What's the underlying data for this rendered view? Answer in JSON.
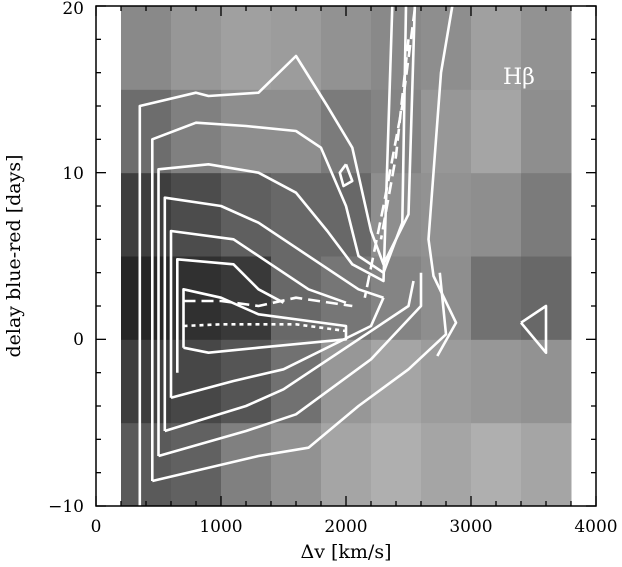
{
  "chart_data": {
    "type": "heatmap",
    "title": "",
    "panel_label": "Hβ",
    "xlabel": "Δv [km/s]",
    "ylabel": "delay blue-red [days]",
    "xlim": [
      0,
      4000
    ],
    "ylim": [
      -10,
      20
    ],
    "x_ticks": [
      0,
      1000,
      2000,
      3000,
      4000
    ],
    "y_ticks": [
      -10,
      0,
      10,
      20
    ],
    "x_tick_labels": [
      "0",
      "1000",
      "2000",
      "3000",
      "4000"
    ],
    "y_tick_labels": [
      "−10",
      "0",
      "10",
      "20"
    ],
    "grid": false,
    "colormap": "grayscale (dark = high, light = low)",
    "contour_color": "#ffffff",
    "x_bins": [
      200,
      600,
      1000,
      1400,
      1800,
      2200,
      2600,
      3000,
      3400,
      3800
    ],
    "y_bins": [
      -10,
      -5,
      0,
      5,
      10,
      15,
      20
    ],
    "values": [
      [
        0.66,
        0.63,
        0.5,
        0.42,
        0.34,
        0.3,
        0.34,
        0.3,
        0.34
      ],
      [
        0.78,
        0.74,
        0.68,
        0.56,
        0.4,
        0.34,
        0.38,
        0.4,
        0.42
      ],
      [
        0.88,
        0.84,
        0.8,
        0.6,
        0.54,
        0.48,
        0.44,
        0.56,
        0.6
      ],
      [
        0.78,
        0.72,
        0.64,
        0.6,
        0.6,
        0.44,
        0.42,
        0.44,
        0.52
      ],
      [
        0.58,
        0.5,
        0.44,
        0.44,
        0.52,
        0.48,
        0.4,
        0.34,
        0.44
      ],
      [
        0.46,
        0.4,
        0.36,
        0.38,
        0.42,
        0.46,
        0.44,
        0.36,
        0.42
      ]
    ],
    "contours": [
      [
        [
          350,
          -10
        ],
        [
          350,
          14.0
        ],
        [
          800,
          14.8
        ],
        [
          900,
          14.6
        ],
        [
          1300,
          14.8
        ],
        [
          1600,
          17.0
        ],
        [
          1850,
          14.0
        ],
        [
          2050,
          11.5
        ],
        [
          2200,
          6.5
        ],
        [
          2300,
          4.5
        ],
        [
          2500,
          7.5
        ],
        [
          2550,
          20
        ]
      ],
      [
        [
          450,
          -8.5
        ],
        [
          450,
          12.0
        ],
        [
          800,
          13.0
        ],
        [
          1200,
          12.8
        ],
        [
          1600,
          12.5
        ],
        [
          1800,
          11.5
        ],
        [
          2000,
          8.0
        ],
        [
          2100,
          5.0
        ],
        [
          2300,
          4.0
        ],
        [
          2450,
          7.0
        ],
        [
          2480,
          20
        ]
      ],
      [
        [
          500,
          -7.0
        ],
        [
          500,
          10.2
        ],
        [
          900,
          10.5
        ],
        [
          1300,
          10.0
        ],
        [
          1600,
          8.8
        ],
        [
          1850,
          6.5
        ],
        [
          2050,
          4.5
        ],
        [
          2300,
          3.5
        ],
        [
          2370,
          20
        ]
      ],
      [
        [
          550,
          -5.5
        ],
        [
          550,
          8.5
        ],
        [
          1000,
          8.0
        ],
        [
          1300,
          7.0
        ],
        [
          1600,
          5.5
        ],
        [
          1900,
          4.0
        ],
        [
          2100,
          3.0
        ],
        [
          2300,
          2.5
        ]
      ],
      [
        [
          600,
          -3.5
        ],
        [
          600,
          6.5
        ],
        [
          1100,
          6.0
        ],
        [
          1400,
          4.5
        ],
        [
          1700,
          3.0
        ],
        [
          2000,
          2.2
        ]
      ],
      [
        [
          650,
          -2.0
        ],
        [
          650,
          4.8
        ],
        [
          1100,
          4.5
        ],
        [
          1300,
          3.0
        ],
        [
          1500,
          2.2
        ]
      ],
      [
        [
          700,
          -0.5
        ],
        [
          700,
          3.0
        ],
        [
          1000,
          2.5
        ],
        [
          1300,
          1.5
        ],
        [
          2000,
          0.8
        ],
        [
          2000,
          0.0
        ],
        [
          1300,
          -0.5
        ],
        [
          900,
          -0.8
        ],
        [
          700,
          -0.5
        ]
      ],
      [
        [
          600,
          -3.5
        ],
        [
          1100,
          -2.5
        ],
        [
          1500,
          -1.8
        ],
        [
          2200,
          0.8
        ],
        [
          2300,
          2.5
        ]
      ],
      [
        [
          550,
          -5.5
        ],
        [
          1200,
          -4.0
        ],
        [
          1500,
          -3.0
        ],
        [
          2500,
          2.0
        ],
        [
          2540,
          3.5
        ]
      ],
      [
        [
          500,
          -7.0
        ],
        [
          1200,
          -5.5
        ],
        [
          1600,
          -4.5
        ],
        [
          2200,
          -1.2
        ],
        [
          2600,
          2.0
        ],
        [
          2600,
          4.0
        ]
      ],
      [
        [
          450,
          -8.5
        ],
        [
          1300,
          -7.0
        ],
        [
          1700,
          -6.5
        ],
        [
          2100,
          -4.0
        ],
        [
          2500,
          -1.8
        ],
        [
          2800,
          0.3
        ],
        [
          2750,
          4.0
        ]
      ],
      [
        [
          2850,
          20
        ],
        [
          2760,
          16.0
        ],
        [
          2700,
          10.0
        ],
        [
          2660,
          6.0
        ],
        [
          2700,
          3.8
        ],
        [
          2880,
          1.0
        ],
        [
          2730,
          -1.0
        ]
      ],
      [
        [
          2000,
          10.5
        ],
        [
          1950,
          10.0
        ],
        [
          1980,
          9.2
        ],
        [
          2050,
          9.5
        ],
        [
          2000,
          10.5
        ]
      ],
      [
        [
          3400,
          1.0
        ],
        [
          3600,
          2.0
        ],
        [
          3600,
          -0.8
        ],
        [
          3400,
          1.0
        ]
      ]
    ],
    "dashed_contours": [
      [
        [
          700,
          2.3
        ],
        [
          1000,
          2.3
        ],
        [
          1300,
          2.0
        ],
        [
          1600,
          2.5
        ],
        [
          2050,
          2.0
        ]
      ],
      [
        [
          2550,
          19.8
        ],
        [
          2450,
          14.0
        ],
        [
          2300,
          8.0
        ],
        [
          2150,
          2.5
        ]
      ],
      [
        [
          2500,
          18.0
        ],
        [
          2400,
          11.0
        ],
        [
          2280,
          6.0
        ]
      ]
    ],
    "dotted_contours": [
      [
        [
          700,
          0.8
        ],
        [
          1000,
          0.9
        ],
        [
          1300,
          0.9
        ],
        [
          1600,
          0.9
        ],
        [
          2000,
          0.5
        ]
      ]
    ]
  }
}
